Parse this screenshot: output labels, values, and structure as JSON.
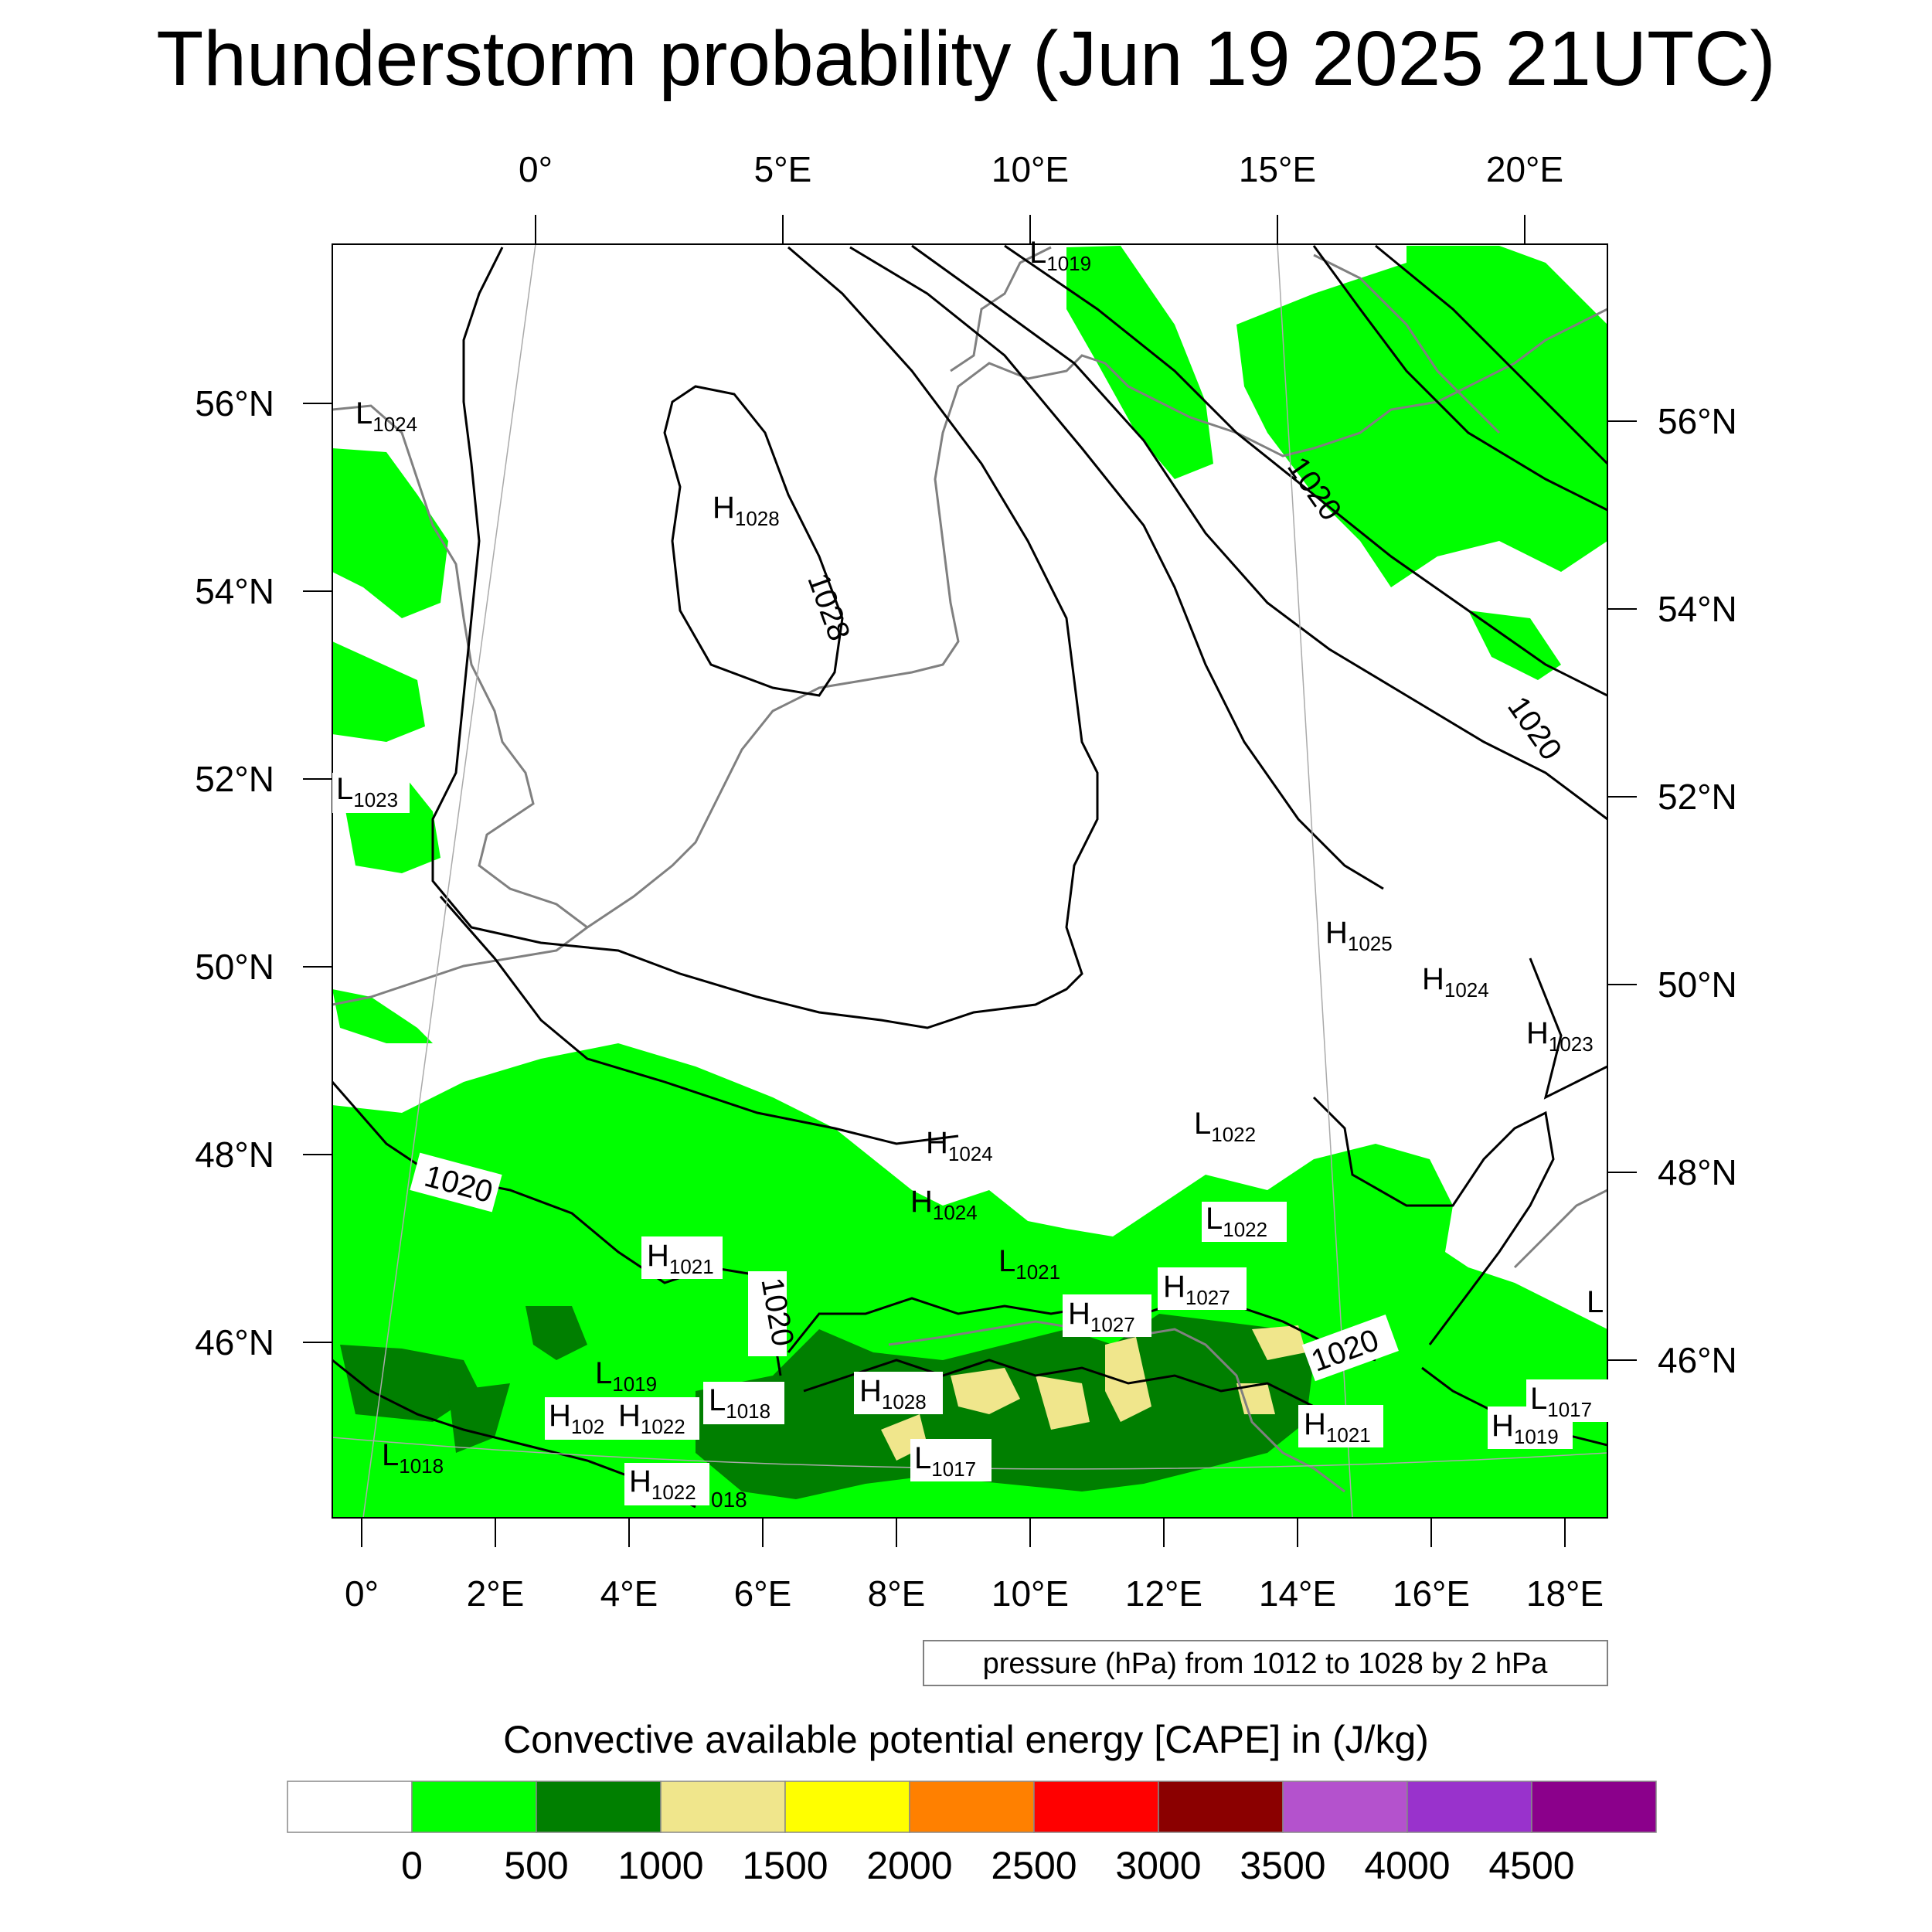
{
  "title": "Thunderstorm probability (Jun 19 2025 21UTC)",
  "top_lon_labels": [
    "0°",
    "5°E",
    "10°E",
    "15°E",
    "20°E"
  ],
  "bottom_lon_labels": [
    "0°",
    "2°E",
    "4°E",
    "6°E",
    "8°E",
    "10°E",
    "12°E",
    "14°E",
    "16°E",
    "18°E"
  ],
  "left_lat_labels": [
    "56°N",
    "54°N",
    "52°N",
    "50°N",
    "48°N",
    "46°N"
  ],
  "right_lat_labels": [
    "56°N",
    "54°N",
    "52°N",
    "50°N",
    "48°N",
    "46°N"
  ],
  "isobar_labels": [
    "1020",
    "1020",
    "1028",
    "1020",
    "1020",
    "1020"
  ],
  "pressure_centers": [
    {
      "type": "L",
      "value": "1019"
    },
    {
      "type": "L",
      "value": "1024"
    },
    {
      "type": "H",
      "value": "1028"
    },
    {
      "type": "L",
      "value": "1023"
    },
    {
      "type": "H",
      "value": "1025"
    },
    {
      "type": "H",
      "value": "1024"
    },
    {
      "type": "H",
      "value": "1023"
    },
    {
      "type": "L",
      "value": "1022"
    },
    {
      "type": "H",
      "value": "1024"
    },
    {
      "type": "H",
      "value": "1024"
    },
    {
      "type": "L",
      "value": "1022"
    },
    {
      "type": "H",
      "value": "1021"
    },
    {
      "type": "L",
      "value": "1021"
    },
    {
      "type": "H",
      "value": "1027"
    },
    {
      "type": "H",
      "value": "1027"
    },
    {
      "type": "L",
      "value": "1019"
    },
    {
      "type": "H",
      "value": "102"
    },
    {
      "type": "H",
      "value": "1022"
    },
    {
      "type": "L",
      "value": "1018"
    },
    {
      "type": "H",
      "value": "1028"
    },
    {
      "type": "L",
      "value": "1017"
    },
    {
      "type": "L",
      "value": "1018"
    },
    {
      "type": "H",
      "value": "1022"
    },
    {
      "type": "H",
      "value": "1021"
    },
    {
      "type": "H",
      "value": "1019"
    },
    {
      "type": "L",
      "value": "1017"
    },
    {
      "type": "L",
      "value": ""
    }
  ],
  "edge_fragment_label": "018",
  "contour_info": "pressure (hPa) from 1012 to 1028 by 2 hPa",
  "legend": {
    "title": "Convective available potential energy [CAPE] in (J/kg)",
    "colors": [
      "#ffffff",
      "#00ff00",
      "#007f00",
      "#f0e68c",
      "#ffff00",
      "#ff8000",
      "#ff0000",
      "#8b0000",
      "#b452cd",
      "#9932cc",
      "#8b008b"
    ],
    "tick_labels": [
      "0",
      "500",
      "1000",
      "1500",
      "2000",
      "2500",
      "3000",
      "3500",
      "4000",
      "4500"
    ]
  },
  "map_colors": {
    "cape_0_500": "#00ff00",
    "cape_500_1000": "#007f00",
    "cape_1000_1500": "#f0e68c",
    "coastline": "#808080",
    "isobar": "#000000"
  }
}
